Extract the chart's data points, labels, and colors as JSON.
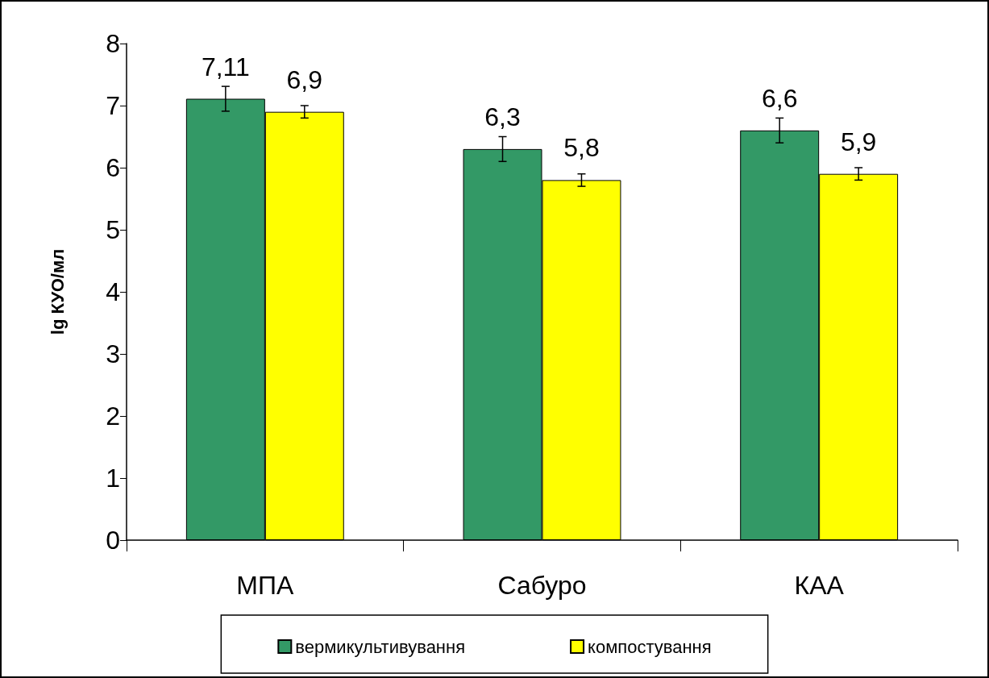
{
  "chart_data": {
    "type": "bar",
    "ylabel": "lg КУО/мл",
    "categories": [
      "МПА",
      "Сабуро",
      "КАА"
    ],
    "series": [
      {
        "name": "вермикультивування",
        "color": "#339966",
        "values": [
          7.11,
          6.3,
          6.6
        ],
        "errors": [
          0.2,
          0.2,
          0.2
        ],
        "value_labels": [
          "7,11",
          "6,3",
          "6,6"
        ]
      },
      {
        "name": "компостування",
        "color": "#ffff00",
        "values": [
          6.9,
          5.8,
          5.9
        ],
        "errors": [
          0.1,
          0.1,
          0.1
        ],
        "value_labels": [
          "6,9",
          "5,8",
          "5,9"
        ]
      }
    ],
    "ylim": [
      0,
      8
    ],
    "yticks": [
      0,
      1,
      2,
      3,
      4,
      5,
      6,
      7,
      8
    ],
    "grid": false,
    "legend": "bottom"
  }
}
